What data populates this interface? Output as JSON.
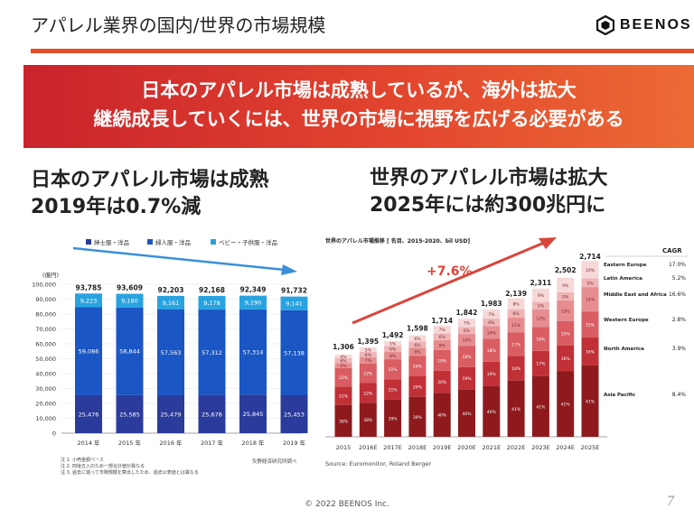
{
  "header": {
    "title": "アパレル業界の国内/世界の市場規模",
    "logo_text": "BEENOS"
  },
  "banner": {
    "line1": "日本のアパレル市場は成熟しているが、海外は拡大",
    "line2": "継続成長していくには、世界の市場に視野を広げる必要がある"
  },
  "left": {
    "heading_line1": "日本のアパレル市場は成熟",
    "heading_line2": "2019年は0.7%減"
  },
  "right": {
    "heading_line1": "世界のアパレル市場は拡大",
    "heading_line2": "2025年には約300兆円に"
  },
  "footer": {
    "copyright": "© 2022 BEENOS Inc.",
    "page": "7"
  },
  "colors": {
    "accent": "#e24f2c",
    "navy": "#2a3b9c",
    "blue": "#1a56c4",
    "cyan": "#29a3e0",
    "arrow_blue": "#3a8fd8"
  },
  "chart_data": [
    {
      "type": "bar",
      "stacked": true,
      "unit_label": "(億円)",
      "categories": [
        "2014 年",
        "2015 年",
        "2016 年",
        "2017 年",
        "2018 年",
        "2019 年"
      ],
      "series": [
        {
          "name": "紳士服・洋品",
          "values": [
            25476,
            25585,
            25479,
            25678,
            25845,
            25453
          ],
          "labels": [
            "25,476",
            "25,585",
            "25,479",
            "25,678",
            "25,845",
            "25,453"
          ],
          "color": "#2a3b9c"
        },
        {
          "name": "婦人服・洋品",
          "values": [
            59086,
            58844,
            57563,
            57312,
            57314,
            57138
          ],
          "labels": [
            "59,086",
            "58,844",
            "57,563",
            "57,312",
            "57,314",
            "57,138"
          ],
          "color": "#1a56c4"
        },
        {
          "name": "ベビー・子供服・洋品",
          "values": [
            9223,
            9180,
            9161,
            9178,
            9190,
            9141
          ],
          "labels": [
            "9,223",
            "9,180",
            "9,161",
            "9,178",
            "9,190",
            "9,141"
          ],
          "color": "#29a3e0"
        }
      ],
      "totals": [
        "93,785",
        "93,609",
        "92,203",
        "92,168",
        "92,349",
        "91,732"
      ],
      "ylim": [
        0,
        100000
      ],
      "yticks": [
        "0",
        "10,000",
        "20,000",
        "30,000",
        "40,000",
        "50,000",
        "60,000",
        "70,000",
        "80,000",
        "90,000",
        "100,000"
      ],
      "notes": [
        "注 1. 小売金額ベース",
        "注 2. 四捨五入のため一部合計値が異なる",
        "注 3. 過去に遡って市場規模を算出したため、過去公表値とは異なる"
      ],
      "source": "矢野経済研究所調べ"
    },
    {
      "type": "bar",
      "stacked": true,
      "title": "世界のアパレル市場推移 [ 名目、2015-2020、bil USD]",
      "categories": [
        "2015",
        "2016E",
        "2017E",
        "2018E",
        "2019E",
        "2020E",
        "2021E",
        "2022E",
        "2023E",
        "2024E",
        "2025E"
      ],
      "totals": [
        1306,
        1395,
        1492,
        1598,
        1714,
        1842,
        1983,
        2139,
        2311,
        2502,
        2714
      ],
      "total_labels": [
        "1,306",
        "1,395",
        "1,492",
        "1,598",
        "1,714",
        "1,842",
        "1,983",
        "2,139",
        "2,311",
        "2,502",
        "2,714"
      ],
      "segments": [
        {
          "name": "Asia Pacific",
          "cagr": "8.4%",
          "color": "#8e1a1e",
          "shares": [
            "38%",
            "38%",
            "39%",
            "39%",
            "40%",
            "40%",
            "40%",
            "41%",
            "41%",
            "41%",
            "41%"
          ]
        },
        {
          "name": "North America",
          "cagr": "3.9%",
          "color": "#c03036",
          "shares": [
            "22%",
            "22%",
            "21%",
            "20%",
            "20%",
            "19%",
            "19%",
            "18%",
            "17%",
            "16%",
            "16%"
          ]
        },
        {
          "name": "Western Europe",
          "cagr": "2.8%",
          "color": "#d95d62",
          "shares": [
            "22%",
            "22%",
            "21%",
            "20%",
            "19%",
            "18%",
            "18%",
            "17%",
            "16%",
            "15%",
            "15%"
          ]
        },
        {
          "name": "Middle East and Africa",
          "cagr": "16.6%",
          "color": "#e68d90",
          "shares": [
            "6%",
            "7%",
            "8%",
            "8%",
            "9%",
            "10%",
            "10%",
            "11%",
            "12%",
            "13%",
            "14%"
          ]
        },
        {
          "name": "Latin America",
          "cagr": "5.2%",
          "color": "#efb5b7",
          "shares": [
            "6%",
            "6%",
            "6%",
            "6%",
            "6%",
            "6%",
            "6%",
            "6%",
            "5%",
            "5%",
            "5%"
          ]
        },
        {
          "name": "Eastern Europe",
          "cagr": "17.0%",
          "color": "#f7d8d9",
          "shares": [
            "4%",
            "5%",
            "5%",
            "6%",
            "7%",
            "7%",
            "7%",
            "8%",
            "9%",
            "9%",
            "10%"
          ]
        }
      ],
      "growth_label": "+7.6%",
      "cagr_header": "CAGR",
      "source": "Source: Euromonitor, Roland Berger"
    }
  ]
}
